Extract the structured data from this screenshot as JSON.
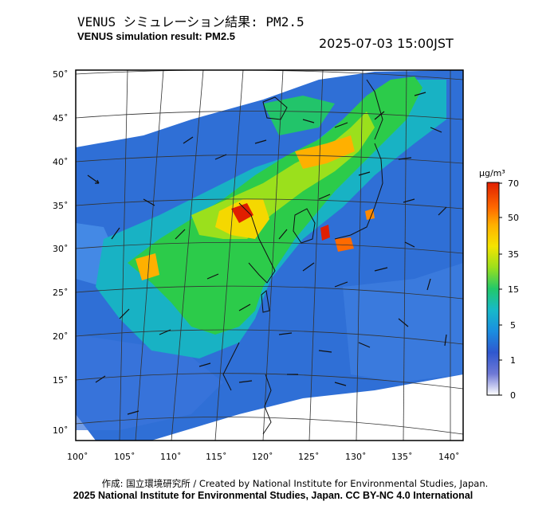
{
  "header": {
    "title_jp": "VENUS シミュレーション結果: PM2.5",
    "title_en": "VENUS simulation result: PM2.5",
    "timestamp": "2025-07-03 15:00JST"
  },
  "map": {
    "lat_labels": [
      "50˚",
      "45˚",
      "40˚",
      "35˚",
      "30˚",
      "25˚",
      "20˚",
      "15˚",
      "10˚"
    ],
    "lon_labels": [
      "100˚",
      "105˚",
      "110˚",
      "115˚",
      "120˚",
      "125˚",
      "130˚",
      "135˚",
      "140˚"
    ]
  },
  "colorbar": {
    "unit": "μg/m³",
    "labels": [
      "70",
      "50",
      "35",
      "15",
      "5",
      "1",
      "0"
    ],
    "colors": [
      "#e01f00",
      "#ff8a00",
      "#f5d800",
      "#7ddc1f",
      "#1fc46a",
      "#1a9bdc",
      "#2b5fd0",
      "#3d4ab8",
      "#c9cdf2",
      "#ffffff"
    ]
  },
  "footer": {
    "credit_1": "作成: 国立環境研究所 / Created by National Institute for Environmental Studies, Japan.",
    "credit_2": "2025 National Institute for Environmental Studies, Japan. CC BY-NC 4.0 International"
  }
}
